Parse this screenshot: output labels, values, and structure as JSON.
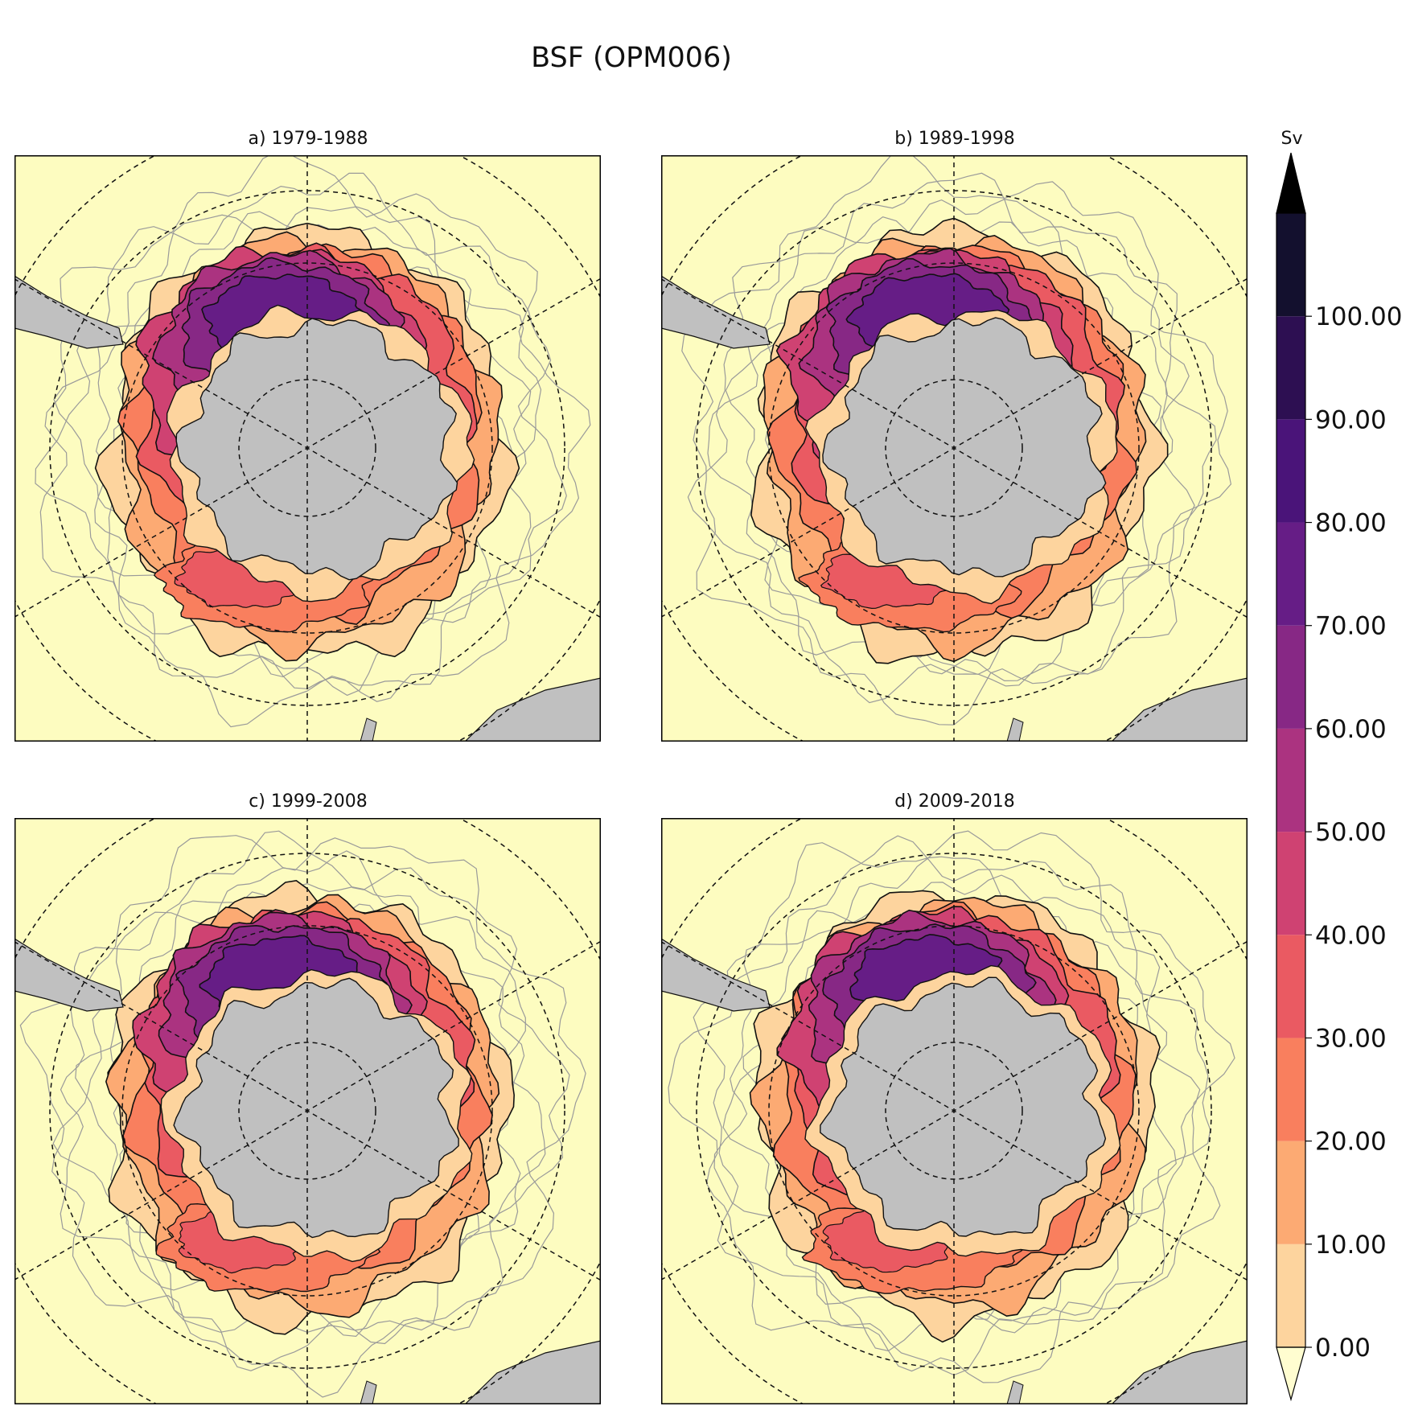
{
  "chart_data": {
    "type": "filled_contour_map",
    "title": "BSF (OPM006)",
    "projection": "south polar stereographic",
    "variable": "barotropic streamfunction",
    "units": "Sv",
    "panels": [
      {
        "label": "a) 1979-1988",
        "max_sv": 80
      },
      {
        "label": "b) 1989-1998",
        "max_sv": 80
      },
      {
        "label": "c) 1999-2008",
        "max_sv": 80
      },
      {
        "label": "d) 2009-2018",
        "max_sv": 80
      }
    ],
    "colorbar": {
      "label": "Sv",
      "levels": [
        0,
        10,
        20,
        30,
        40,
        50,
        60,
        70,
        80,
        90,
        100
      ],
      "tick_labels": [
        "0.00",
        "10.00",
        "20.00",
        "30.00",
        "40.00",
        "50.00",
        "60.00",
        "70.00",
        "80.00",
        "90.00",
        "100.00"
      ],
      "colors": [
        "#fdd49e",
        "#fcaa73",
        "#f97f5e",
        "#ea5a62",
        "#cf4272",
        "#ab3380",
        "#872885",
        "#661d86",
        "#4a1479",
        "#2d0f52",
        "#13102e"
      ],
      "extend": "both",
      "under_color": "#fffdd0",
      "over_color": "#000000"
    },
    "land_color": "#c0c0c0",
    "ocean_background": "#fdfcc0",
    "gridlines": "dashed"
  }
}
